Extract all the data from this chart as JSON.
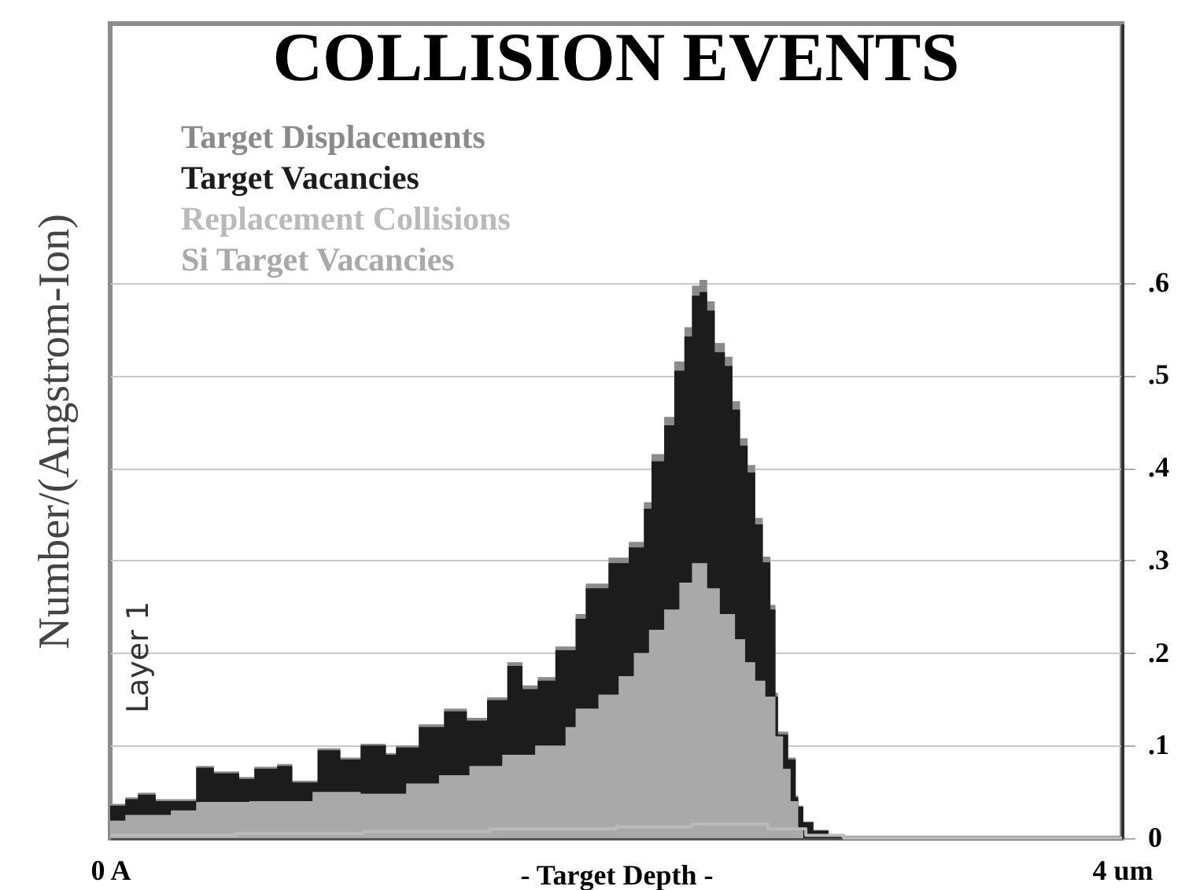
{
  "chart_data": {
    "type": "area",
    "title": "COLLISION EVENTS",
    "xlabel": "- Target Depth -",
    "ylabel": "Number/(Angstrom-Ion)",
    "xlim": [
      0,
      4
    ],
    "xticks": [
      {
        "value": 0,
        "label": "0 A"
      },
      {
        "value": 4,
        "label": "4 um"
      }
    ],
    "ylim": [
      0,
      0.88
    ],
    "yticks": [
      0,
      {
        "value": 0.1,
        "label": ".1"
      },
      {
        "value": 0.2,
        "label": ".2"
      },
      {
        "value": 0.3,
        "label": ".3"
      },
      {
        "value": 0.4,
        "label": ".4"
      },
      {
        "value": 0.5,
        "label": ".5"
      },
      {
        "value": 0.6,
        "label": ".6"
      }
    ],
    "grid": "y",
    "legend": "top left",
    "annotations": [
      "Layer 1"
    ],
    "series": [
      {
        "name": "Target Displacements",
        "color": "#8a8a8a",
        "x": [
          0,
          0.06,
          0.11,
          0.18,
          0.34,
          0.41,
          0.51,
          0.57,
          0.66,
          0.72,
          0.82,
          0.91,
          0.99,
          1.09,
          1.13,
          1.22,
          1.32,
          1.41,
          1.49,
          1.57,
          1.63,
          1.69,
          1.76,
          1.84,
          1.88,
          1.97,
          2.05,
          2.11,
          2.14,
          2.19,
          2.23,
          2.27,
          2.3,
          2.33,
          2.36,
          2.39,
          2.43,
          2.46,
          2.49,
          2.52,
          2.55,
          2.58,
          2.61,
          2.63,
          2.64,
          2.68,
          2.71,
          2.72,
          2.74,
          2.78,
          2.84,
          2.89,
          4
        ],
        "values": [
          0.037,
          0.044,
          0.049,
          0.042,
          0.078,
          0.072,
          0.066,
          0.077,
          0.08,
          0.062,
          0.097,
          0.087,
          0.102,
          0.092,
          0.1,
          0.123,
          0.14,
          0.13,
          0.152,
          0.19,
          0.165,
          0.174,
          0.207,
          0.242,
          0.275,
          0.303,
          0.32,
          0.363,
          0.415,
          0.455,
          0.515,
          0.552,
          0.597,
          0.603,
          0.58,
          0.535,
          0.52,
          0.472,
          0.432,
          0.403,
          0.346,
          0.304,
          0.252,
          0.157,
          0.115,
          0.087,
          0.046,
          0.035,
          0.018,
          0.009,
          0.002,
          0,
          0
        ]
      },
      {
        "name": "Target Vacancies",
        "color": "#1c1c1c",
        "x": [
          0,
          0.06,
          0.11,
          0.18,
          0.34,
          0.41,
          0.51,
          0.57,
          0.66,
          0.72,
          0.82,
          0.91,
          0.99,
          1.09,
          1.13,
          1.22,
          1.32,
          1.41,
          1.49,
          1.57,
          1.63,
          1.69,
          1.76,
          1.84,
          1.88,
          1.97,
          2.05,
          2.11,
          2.14,
          2.19,
          2.23,
          2.27,
          2.3,
          2.33,
          2.36,
          2.39,
          2.43,
          2.46,
          2.49,
          2.52,
          2.55,
          2.58,
          2.61,
          2.63,
          2.64,
          2.68,
          2.71,
          2.72,
          2.74,
          2.78,
          2.84,
          2.89,
          4
        ],
        "values": [
          0.035,
          0.042,
          0.047,
          0.04,
          0.076,
          0.07,
          0.064,
          0.075,
          0.078,
          0.06,
          0.095,
          0.085,
          0.1,
          0.09,
          0.098,
          0.12,
          0.137,
          0.127,
          0.149,
          0.186,
          0.161,
          0.17,
          0.203,
          0.237,
          0.27,
          0.297,
          0.314,
          0.356,
          0.407,
          0.446,
          0.505,
          0.542,
          0.586,
          0.59,
          0.57,
          0.525,
          0.51,
          0.463,
          0.424,
          0.395,
          0.339,
          0.298,
          0.247,
          0.153,
          0.112,
          0.085,
          0.044,
          0.034,
          0.017,
          0.008,
          0.002,
          0,
          0
        ]
      },
      {
        "name": "Replacement Collisions",
        "color": "#bababa",
        "type": "step",
        "x": [
          0,
          0.5,
          1.0,
          1.5,
          2.0,
          2.3,
          2.6,
          2.75,
          2.9,
          4
        ],
        "values": [
          0.003,
          0.005,
          0.007,
          0.01,
          0.012,
          0.015,
          0.01,
          0.003,
          0,
          0
        ]
      },
      {
        "name": "Si Target Vacancies",
        "color": "#a9a9a9",
        "x": [
          0,
          0.06,
          0.24,
          0.34,
          0.55,
          0.8,
          0.99,
          1.17,
          1.3,
          1.42,
          1.55,
          1.68,
          1.8,
          1.84,
          1.93,
          2.01,
          2.07,
          2.13,
          2.19,
          2.25,
          2.3,
          2.36,
          2.41,
          2.47,
          2.51,
          2.55,
          2.59,
          2.63,
          2.66,
          2.69,
          2.72,
          2.74,
          4
        ],
        "values": [
          0.019,
          0.025,
          0.03,
          0.039,
          0.04,
          0.05,
          0.048,
          0.059,
          0.068,
          0.078,
          0.09,
          0.1,
          0.12,
          0.14,
          0.155,
          0.175,
          0.2,
          0.225,
          0.247,
          0.276,
          0.297,
          0.27,
          0.242,
          0.215,
          0.19,
          0.17,
          0.153,
          0.11,
          0.075,
          0.04,
          0.01,
          0,
          0
        ]
      }
    ]
  }
}
